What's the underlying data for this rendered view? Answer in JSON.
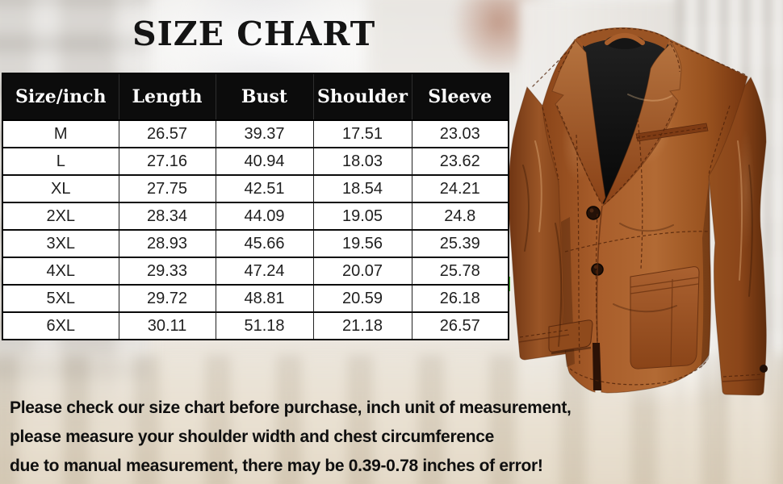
{
  "title": "SIZE CHART",
  "chart_data": {
    "type": "table",
    "title": "SIZE CHART",
    "unit": "inch",
    "columns": [
      "Size/inch",
      "Length",
      "Bust",
      "Shoulder",
      "Sleeve"
    ],
    "rows": [
      [
        "M",
        "26.57",
        "39.37",
        "17.51",
        "23.03"
      ],
      [
        "L",
        "27.16",
        "40.94",
        "18.03",
        "23.62"
      ],
      [
        "XL",
        "27.75",
        "42.51",
        "18.54",
        "24.21"
      ],
      [
        "2XL",
        "28.34",
        "44.09",
        "19.05",
        "24.8"
      ],
      [
        "3XL",
        "28.93",
        "45.66",
        "19.56",
        "25.39"
      ],
      [
        "4XL",
        "29.33",
        "47.24",
        "20.07",
        "25.78"
      ],
      [
        "5XL",
        "29.72",
        "48.81",
        "20.59",
        "26.18"
      ],
      [
        "6XL",
        "30.11",
        "51.18",
        "21.18",
        "26.57"
      ]
    ]
  },
  "notes": {
    "lines": [
      "Please check our size chart before purchase, inch unit of measurement,",
      "please measure your shoulder width and chest circumference",
      "due to manual measurement, there may be 0.39-0.78 inches of error!"
    ]
  },
  "product_photo": {
    "label": "brown-leather-blazer"
  },
  "colors": {
    "header_bg": "#0c0c0c",
    "header_text": "#ffffff",
    "table_bg": "#ffffff",
    "table_text": "#1f1f1f",
    "jacket_brown": "#a45a28",
    "jacket_shadow": "#6e3312",
    "jacket_lining": "#111111",
    "notes_text": "#0f0f0f",
    "green_sliver": "#43b12a"
  }
}
